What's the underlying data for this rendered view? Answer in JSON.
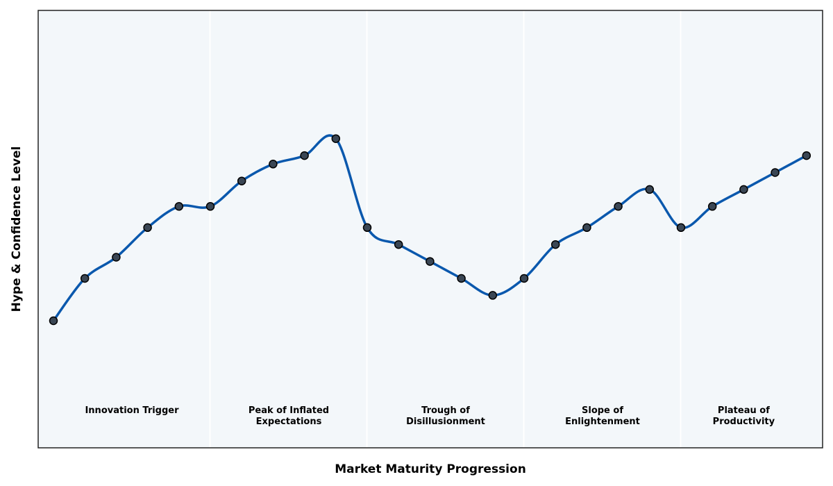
{
  "chart_data": {
    "type": "line",
    "xlabel": "Market Maturity Progression",
    "ylabel": "Hype & Confidence Level",
    "x_ticks_visible": false,
    "y_ticks_visible": false,
    "ylim": [
      0,
      100
    ],
    "phases": [
      {
        "label_lines": [
          "Innovation Trigger"
        ],
        "start": 0,
        "end": 5
      },
      {
        "label_lines": [
          "Peak of Inflated",
          "Expectations"
        ],
        "start": 5,
        "end": 10
      },
      {
        "label_lines": [
          "Trough of",
          "Disillusionment"
        ],
        "start": 10,
        "end": 15
      },
      {
        "label_lines": [
          "Slope of",
          "Enlightenment"
        ],
        "start": 15,
        "end": 20
      },
      {
        "label_lines": [
          "Plateau of",
          "Productivity"
        ],
        "start": 20,
        "end": 24
      }
    ],
    "series": [
      {
        "x": [
          0,
          1,
          2,
          3,
          4,
          5,
          6,
          7,
          8,
          9,
          10,
          11,
          12,
          13,
          14,
          15,
          16,
          17,
          18,
          19,
          20,
          21,
          22,
          23,
          24
        ],
        "values": [
          30,
          40,
          45,
          52,
          57,
          57,
          63,
          67,
          69,
          73,
          52,
          48,
          44,
          40,
          36,
          40,
          48,
          52,
          57,
          61,
          52,
          57,
          61,
          65,
          69
        ]
      }
    ],
    "colors": {
      "line": "#0A58AD",
      "marker_fill": "#3A4654",
      "marker_edge": "#000000",
      "plot_background": "#F3F7FA",
      "phase_divider": "#FFFFFF",
      "frame": "#222222"
    }
  }
}
